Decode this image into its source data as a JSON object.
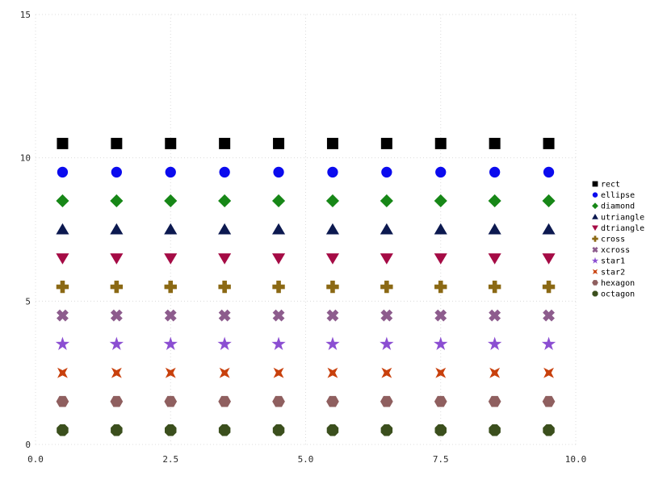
{
  "chart_data": {
    "type": "scatter",
    "title": "",
    "xlabel": "",
    "ylabel": "",
    "xlim": [
      0,
      10
    ],
    "ylim": [
      0,
      15
    ],
    "xticks": [
      0,
      2.5,
      5,
      7.5,
      10
    ],
    "xtick_labels": [
      "0.0",
      "2.5",
      "5.0",
      "7.5",
      "10.0"
    ],
    "yticks": [
      0,
      5,
      10,
      15
    ],
    "ytick_labels": [
      "0",
      "5",
      "10",
      "15"
    ],
    "grid": true,
    "legend_position": "right",
    "x": [
      0.5,
      1.5,
      2.5,
      3.5,
      4.5,
      5.5,
      6.5,
      7.5,
      8.5,
      9.5
    ],
    "series": [
      {
        "name": "rect",
        "marker": "rect",
        "color": "#000000",
        "y": 10.5
      },
      {
        "name": "ellipse",
        "marker": "ellipse",
        "color": "#0b0bee",
        "y": 9.5
      },
      {
        "name": "diamond",
        "marker": "diamond",
        "color": "#178717",
        "y": 8.5
      },
      {
        "name": "utriangle",
        "marker": "utriangle",
        "color": "#0c1950",
        "y": 7.5
      },
      {
        "name": "dtriangle",
        "marker": "dtriangle",
        "color": "#a50b45",
        "y": 6.5
      },
      {
        "name": "cross",
        "marker": "cross",
        "color": "#8b6914",
        "y": 5.5
      },
      {
        "name": "xcross",
        "marker": "xcross",
        "color": "#8d5c8d",
        "y": 4.5
      },
      {
        "name": "star1",
        "marker": "star1",
        "color": "#8b4ed2",
        "y": 3.5
      },
      {
        "name": "star2",
        "marker": "star2",
        "color": "#c8400c",
        "y": 2.5
      },
      {
        "name": "hexagon",
        "marker": "hexagon",
        "color": "#8f5f5f",
        "y": 1.5
      },
      {
        "name": "octagon",
        "marker": "octagon",
        "color": "#3b4f1d",
        "y": 0.5
      }
    ]
  }
}
